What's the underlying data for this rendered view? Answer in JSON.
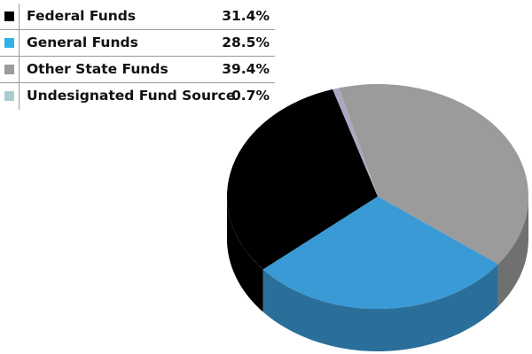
{
  "chart_data": {
    "type": "pie",
    "style": "3d",
    "legend_position": "top-left",
    "slices": [
      {
        "label": "Federal Funds",
        "value_label": "31.4%",
        "value": 31.4,
        "color": "#000000"
      },
      {
        "label": "General Funds",
        "value_label": "28.5%",
        "value": 28.5,
        "color": "#3a9ad6"
      },
      {
        "label": "Other State Funds",
        "value_label": "39.4%",
        "value": 39.4,
        "color": "#9b9b9b"
      },
      {
        "label": "Undesignated Fund Source",
        "value_label": "0.7%",
        "value": 0.7,
        "color": "#a9a9c4"
      }
    ]
  }
}
